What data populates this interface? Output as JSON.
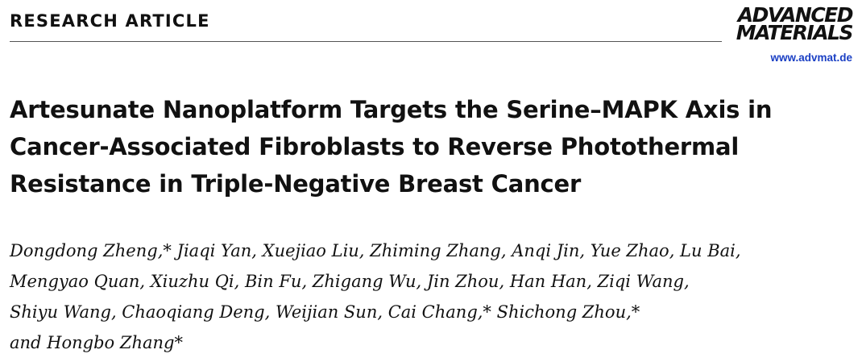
{
  "header": {
    "article_type": "RESEARCH ARTICLE",
    "journal_logo_lines": [
      "ADVANCED",
      "MATERIALS"
    ],
    "journal_url": "www.advmat.de"
  },
  "article": {
    "title_lines": [
      "Artesunate Nanoplatform Targets the Serine–MAPK Axis in",
      "Cancer-Associated Fibroblasts to Reverse Photothermal",
      "Resistance in Triple-Negative Breast Cancer"
    ],
    "author_lines": [
      "Dongdong Zheng,* Jiaqi Yan, Xuejiao Liu, Zhiming Zhang, Anqi Jin, Yue Zhao, Lu Bai,",
      "Mengyao Quan, Xiuzhu Qi, Bin Fu, Zhigang Wu, Jin Zhou, Han Han, Ziqi Wang,",
      "Shiyu Wang, Chaoqiang Deng, Weijian Sun, Cai Chang,* Shichong Zhou,*",
      "and Hongbo Zhang*"
    ]
  },
  "colors": {
    "text": "#111111",
    "link": "#1a3fc4",
    "rule": "#555555"
  }
}
